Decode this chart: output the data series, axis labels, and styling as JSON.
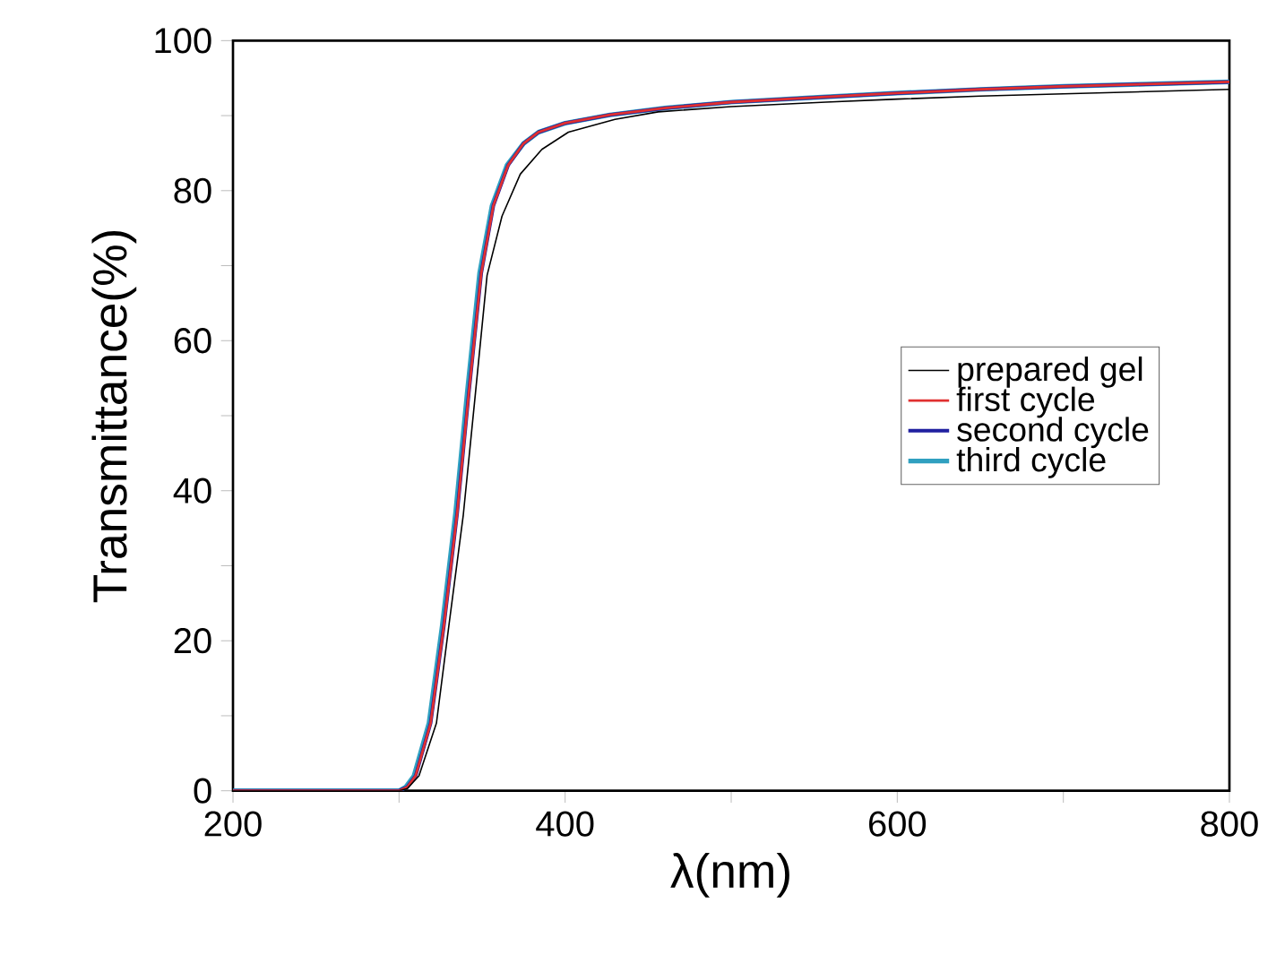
{
  "chart_data": {
    "type": "line",
    "xlabel": "λ(nm)",
    "ylabel": "Transmittance(%)",
    "xlim": [
      200,
      800
    ],
    "xticks": [
      200,
      {
        "value": 300,
        "label": null
      },
      400,
      {
        "value": 500,
        "label": null
      },
      600,
      {
        "value": 700,
        "label": null
      },
      800
    ],
    "ylim": [
      0,
      100
    ],
    "yticks": [
      0,
      {
        "value": 10,
        "label": null
      },
      20,
      {
        "value": 30,
        "label": null
      },
      40,
      {
        "value": 50,
        "label": null
      },
      60,
      {
        "value": 70,
        "label": null
      },
      80,
      {
        "value": 90,
        "label": null
      },
      100
    ],
    "legend": "right",
    "line_style": "solid",
    "marker": "none",
    "grid": false,
    "series": [
      {
        "name": "prepared gel",
        "color": "#000000",
        "x": [
          200,
          290,
          300,
          305,
          312,
          322.5,
          330,
          338.7,
          346,
          353,
          362,
          373,
          386,
          402,
          430,
          456,
          500,
          557,
          600,
          650,
          700,
          750,
          800
        ],
        "values": [
          0,
          0,
          0,
          0.3,
          2,
          9,
          22,
          36.8,
          53,
          68.7,
          76.6,
          82.2,
          85.5,
          87.8,
          89.5,
          90.5,
          91.2,
          91.8,
          92.2,
          92.6,
          92.9,
          93.2,
          93.5
        ]
      },
      {
        "name": "first cycle",
        "color": "#e03030",
        "x": [
          200,
          290,
          300,
          305,
          310,
          319,
          327,
          335,
          342,
          349.5,
          356.8,
          365.7,
          375,
          384,
          400,
          427,
          460,
          500,
          557,
          600,
          650,
          700,
          750,
          800
        ],
        "values": [
          0,
          0,
          0,
          0.5,
          2,
          9,
          22,
          37,
          53,
          69,
          78,
          83.4,
          86.3,
          87.8,
          89,
          90.1,
          91,
          91.8,
          92.5,
          93,
          93.5,
          93.9,
          94.2,
          94.5
        ]
      },
      {
        "name": "second cycle",
        "color": "#2020a0",
        "x": [
          200,
          290,
          300,
          305,
          310,
          319,
          327,
          335,
          342,
          349.5,
          356.8,
          365.7,
          375,
          384,
          400,
          427,
          460,
          500,
          557,
          600,
          650,
          700,
          750,
          800
        ],
        "values": [
          0,
          0,
          0,
          0.5,
          2,
          9,
          22,
          37,
          53,
          69,
          78,
          83.4,
          86.3,
          87.8,
          89,
          90.1,
          91,
          91.8,
          92.5,
          93,
          93.5,
          93.9,
          94.2,
          94.5
        ]
      },
      {
        "name": "third cycle",
        "color": "#30a0c0",
        "x": [
          200,
          290,
          300,
          304,
          309,
          318,
          326,
          334,
          341,
          348.5,
          356,
          365,
          375,
          384,
          400,
          427,
          460,
          500,
          557,
          600,
          650,
          700,
          750,
          800
        ],
        "values": [
          0,
          0,
          0,
          0.5,
          2,
          9,
          22,
          37,
          53,
          69,
          78,
          83.4,
          86.3,
          87.8,
          89,
          90.1,
          91,
          91.8,
          92.5,
          93,
          93.5,
          93.9,
          94.2,
          94.5
        ]
      }
    ]
  }
}
